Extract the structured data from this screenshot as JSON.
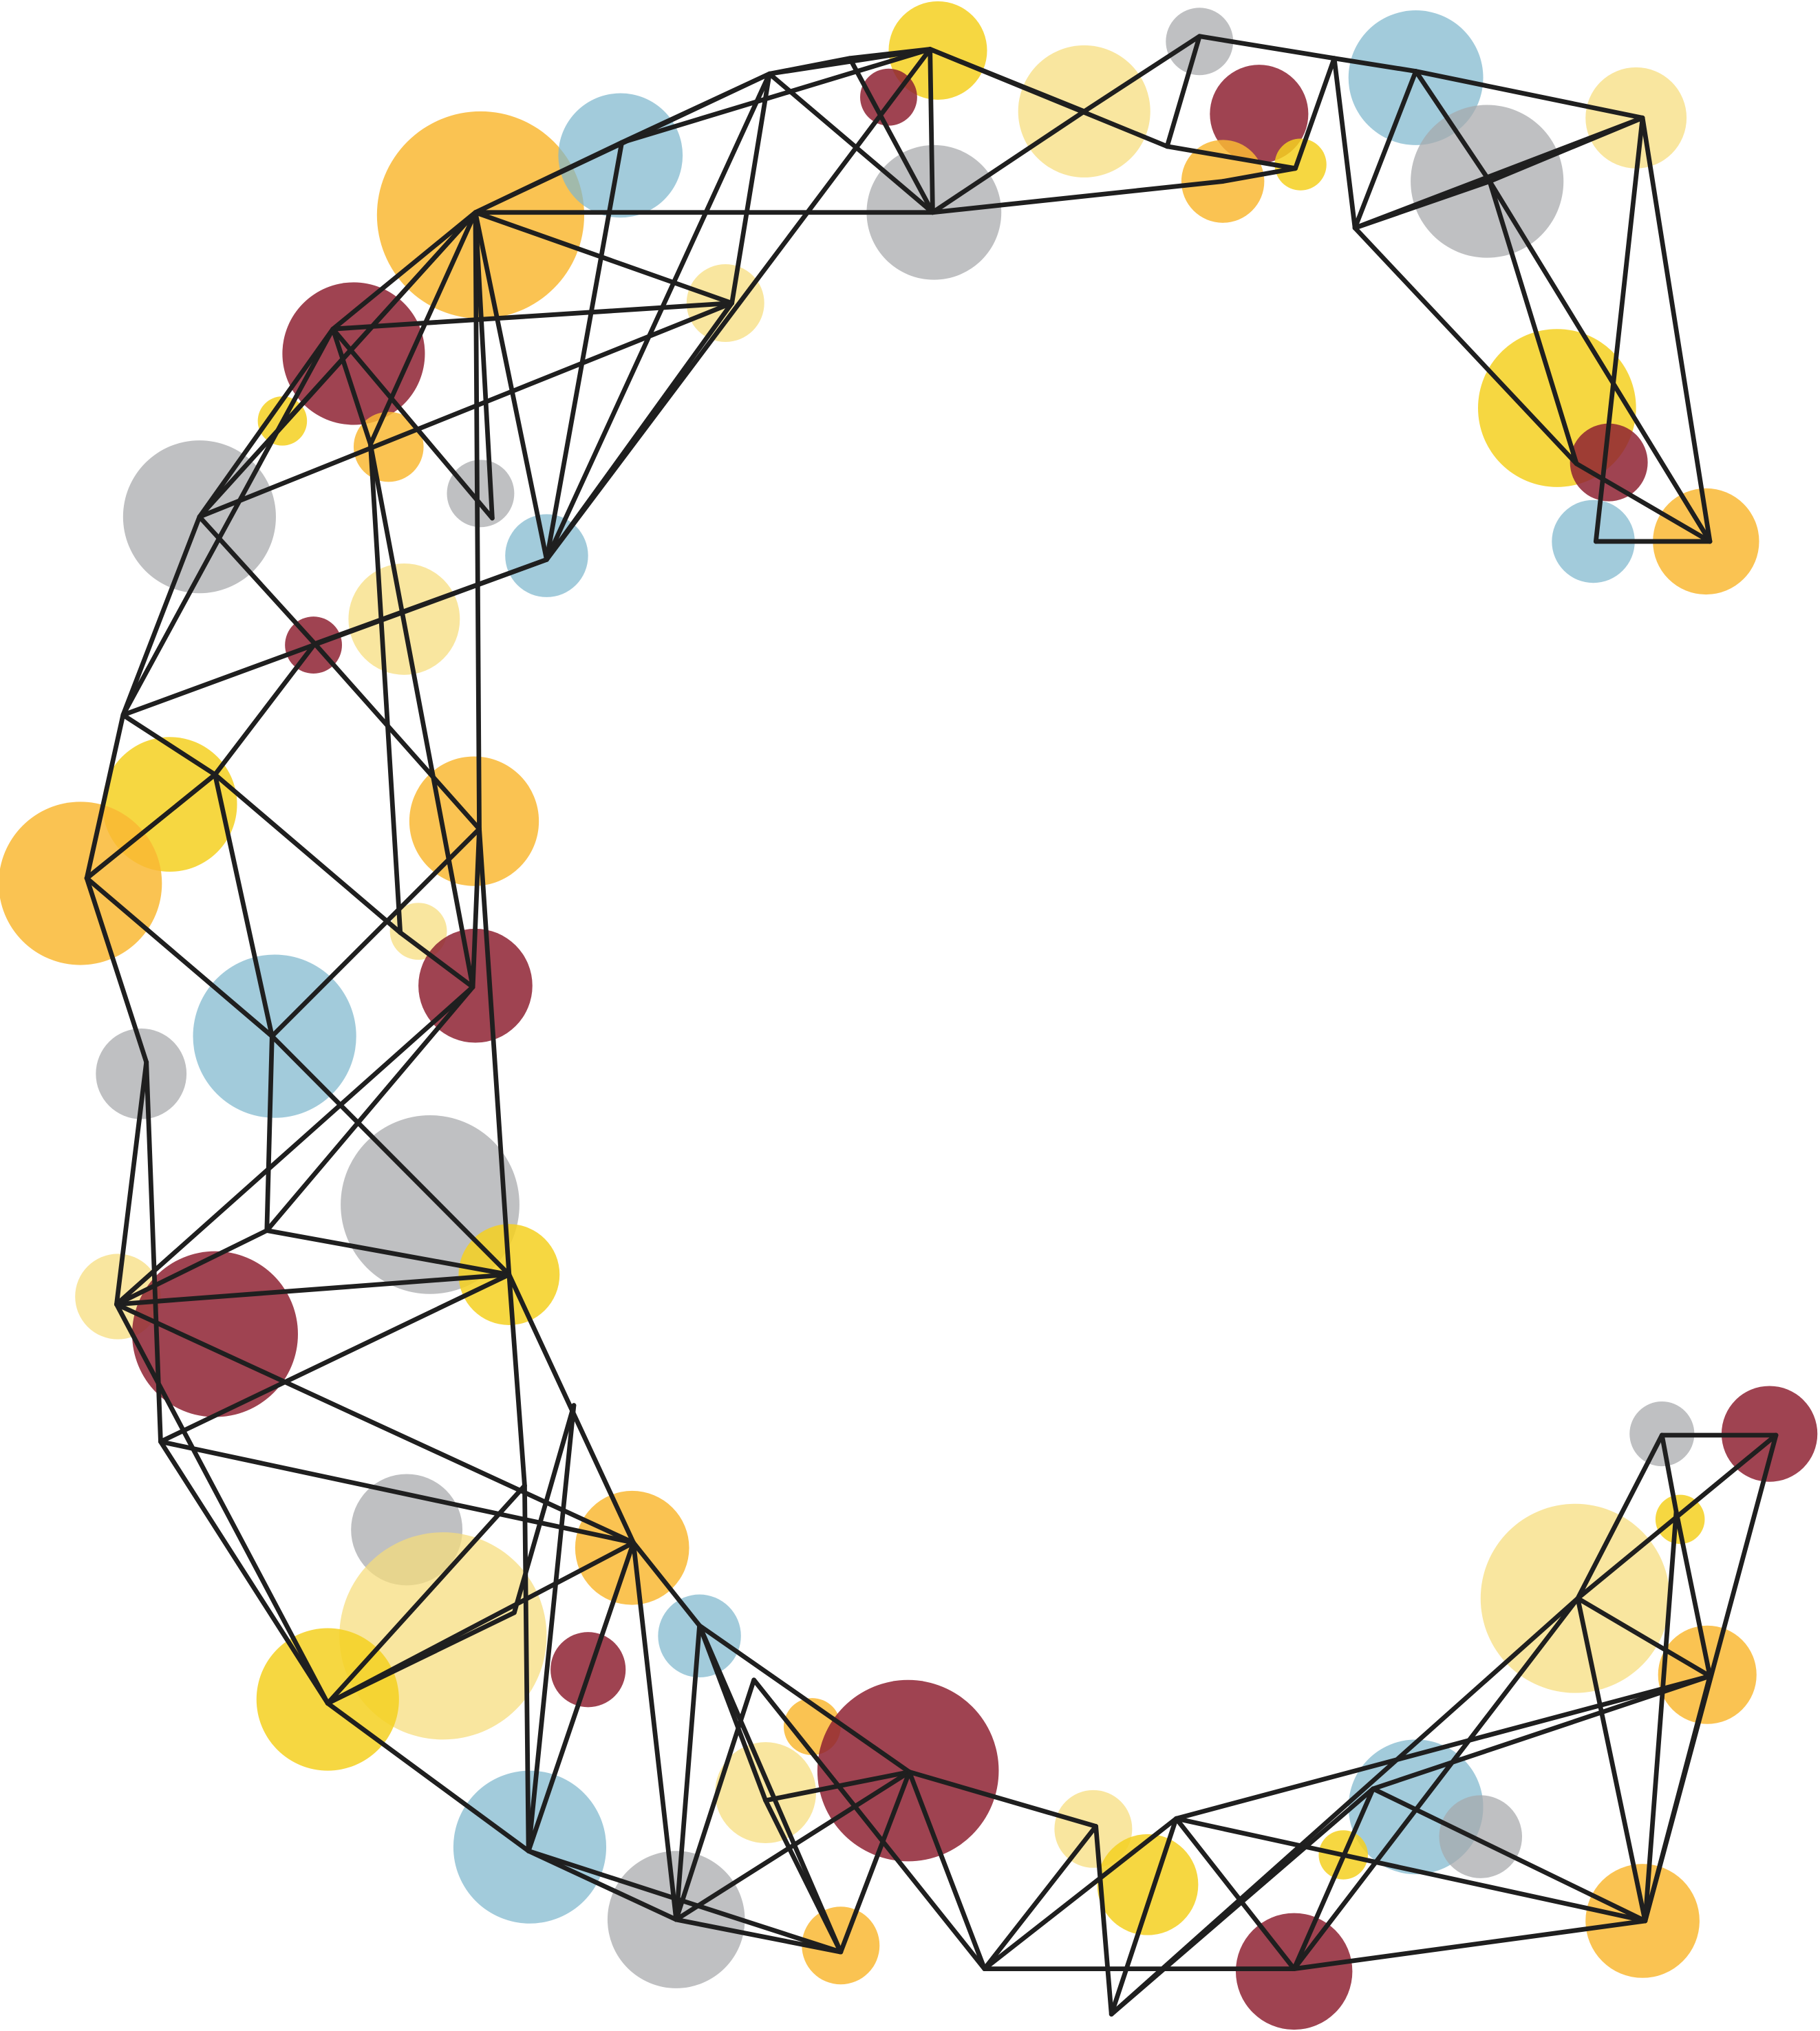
{
  "artwork": {
    "shape": "letter C",
    "style": "network of translucent circles joined by thin dark lines",
    "palette": {
      "mustard": "#f5d020",
      "pale_yellow": "#f6dd7a",
      "orange": "#f9b934",
      "maroon": "#8e2232",
      "blue": "#7eb7cd",
      "gray": "#a6a7aa",
      "line": "#1f1f1f",
      "background": "#ffffff"
    }
  }
}
